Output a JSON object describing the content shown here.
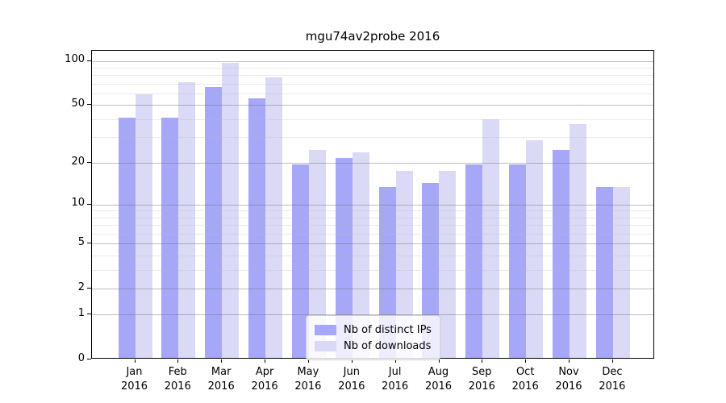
{
  "title": "mgu74av2probe 2016",
  "colors": {
    "distinct_ips_bar": "#a7a7f7",
    "downloads_bar": "#dadaf7",
    "axis": "#000000"
  },
  "chart_data": {
    "type": "bar",
    "title": "mgu74av2probe 2016",
    "xlabel": "",
    "ylabel": "",
    "year": "2016",
    "categories": [
      "Jan",
      "Feb",
      "Mar",
      "Apr",
      "May",
      "Jun",
      "Jul",
      "Aug",
      "Sep",
      "Oct",
      "Nov",
      "Dec"
    ],
    "series": [
      {
        "name": "Nb of distinct IPs",
        "color": "#a7a7f7",
        "values": [
          40,
          40,
          65,
          54,
          19,
          21,
          13,
          14,
          19,
          19,
          24,
          13
        ]
      },
      {
        "name": "Nb of downloads",
        "color": "#dadaf7",
        "values": [
          58,
          70,
          95,
          75,
          24,
          23,
          17,
          17,
          39,
          28,
          36,
          13
        ]
      }
    ],
    "y_scale": "log10(1+y)",
    "y_ticks": [
      0,
      1,
      2,
      5,
      10,
      20,
      50,
      100
    ],
    "y_minor_ticks": [
      3,
      4,
      6,
      7,
      8,
      9,
      30,
      40,
      60,
      70,
      80,
      90
    ],
    "ylim": [
      0,
      117
    ],
    "grid": true,
    "legend_position": "lower center"
  }
}
